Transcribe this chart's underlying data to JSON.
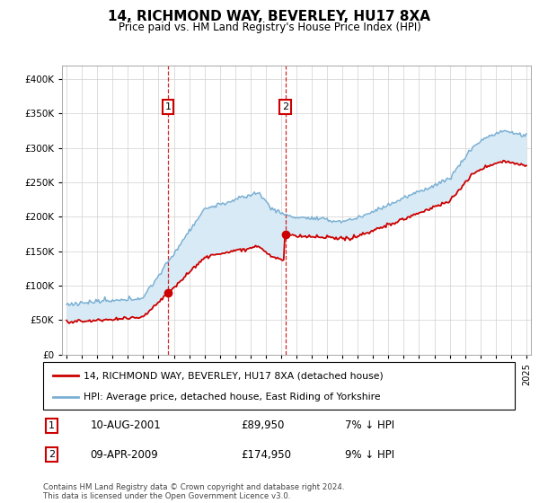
{
  "title": "14, RICHMOND WAY, BEVERLEY, HU17 8XA",
  "subtitle": "Price paid vs. HM Land Registry's House Price Index (HPI)",
  "legend_line1": "14, RICHMOND WAY, BEVERLEY, HU17 8XA (detached house)",
  "legend_line2": "HPI: Average price, detached house, East Riding of Yorkshire",
  "annotation1_date": "10-AUG-2001",
  "annotation1_price": "£89,950",
  "annotation1_hpi": "7% ↓ HPI",
  "annotation2_date": "09-APR-2009",
  "annotation2_price": "£174,950",
  "annotation2_hpi": "9% ↓ HPI",
  "footer": "Contains HM Land Registry data © Crown copyright and database right 2024.\nThis data is licensed under the Open Government Licence v3.0.",
  "red_color": "#cc0000",
  "blue_color": "#7ab0d4",
  "shade_color": "#d8eaf5",
  "ylim": [
    0,
    420000
  ],
  "yticks": [
    0,
    50000,
    100000,
    150000,
    200000,
    250000,
    300000,
    350000,
    400000
  ],
  "purchase1_year": 2001.62,
  "purchase1_price": 89950,
  "purchase2_year": 2009.27,
  "purchase2_price": 174950,
  "start_year": 1995,
  "end_year": 2025
}
